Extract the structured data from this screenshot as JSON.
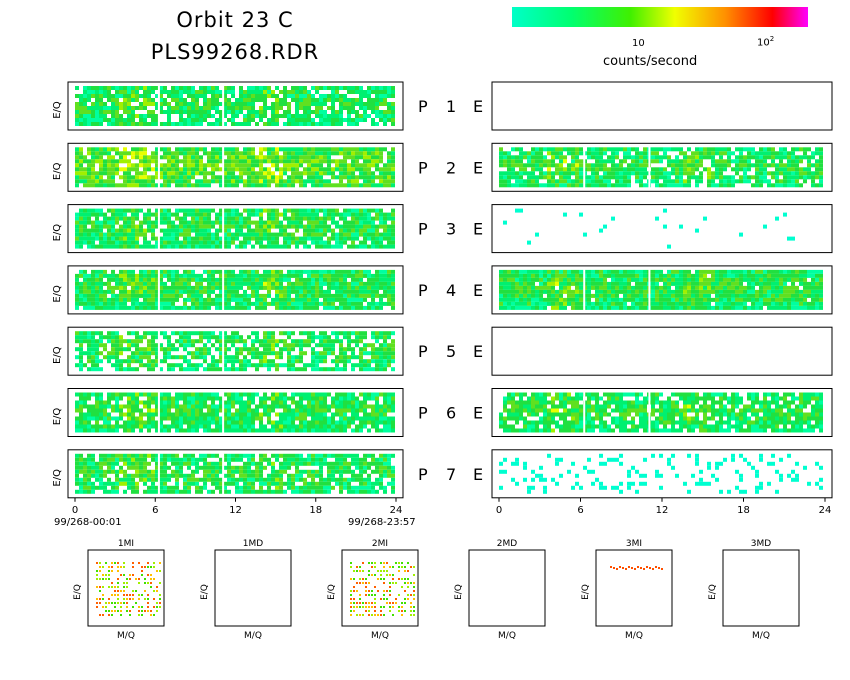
{
  "header": {
    "title_line1": "Orbit 23 C",
    "title_line2": "PLS99268.RDR"
  },
  "colorbar": {
    "tick_10": "10",
    "tick_100_base": "10",
    "tick_100_exp": "2",
    "label": "counts/second",
    "colors": [
      "#00ffc8",
      "#00ff70",
      "#40f000",
      "#f0ff00",
      "#ff9000",
      "#ff0000",
      "#ff00ff"
    ]
  },
  "chart_data": {
    "type": "heatmap",
    "panels": [
      {
        "group": "P",
        "num": "1",
        "E": "E",
        "p_activity": 0.82,
        "e_activity": 0.0
      },
      {
        "group": "P",
        "num": "2",
        "E": "E",
        "p_activity": 0.9,
        "e_activity": 0.85
      },
      {
        "group": "P",
        "num": "3",
        "E": "E",
        "p_activity": 0.88,
        "e_activity": 0.02
      },
      {
        "group": "P",
        "num": "4",
        "E": "E",
        "p_activity": 0.9,
        "e_activity": 0.95
      },
      {
        "group": "P",
        "num": "5",
        "E": "E",
        "p_activity": 0.7,
        "e_activity": 0.0
      },
      {
        "group": "P",
        "num": "6",
        "E": "E",
        "p_activity": 0.88,
        "e_activity": 0.85
      },
      {
        "group": "P",
        "num": "7",
        "E": "E",
        "p_activity": 0.8,
        "e_activity": 0.2
      }
    ],
    "ylabel": "E/Q",
    "xlim": [
      0,
      24
    ],
    "xticks": [
      "0",
      "6",
      "12",
      "18",
      "24"
    ],
    "start_time": "99/268-00:01",
    "end_time": "99/268-23:57",
    "mq_panels": [
      {
        "label": "1MI",
        "xlabel": "M/Q",
        "ylabel": "E/Q"
      },
      {
        "label": "1MD",
        "xlabel": "M/Q",
        "ylabel": "E/Q"
      },
      {
        "label": "2MI",
        "xlabel": "M/Q",
        "ylabel": "E/Q"
      },
      {
        "label": "2MD",
        "xlabel": "M/Q",
        "ylabel": "E/Q"
      },
      {
        "label": "3MI",
        "xlabel": "M/Q",
        "ylabel": "E/Q"
      },
      {
        "label": "3MD",
        "xlabel": "M/Q",
        "ylabel": "E/Q"
      }
    ]
  }
}
